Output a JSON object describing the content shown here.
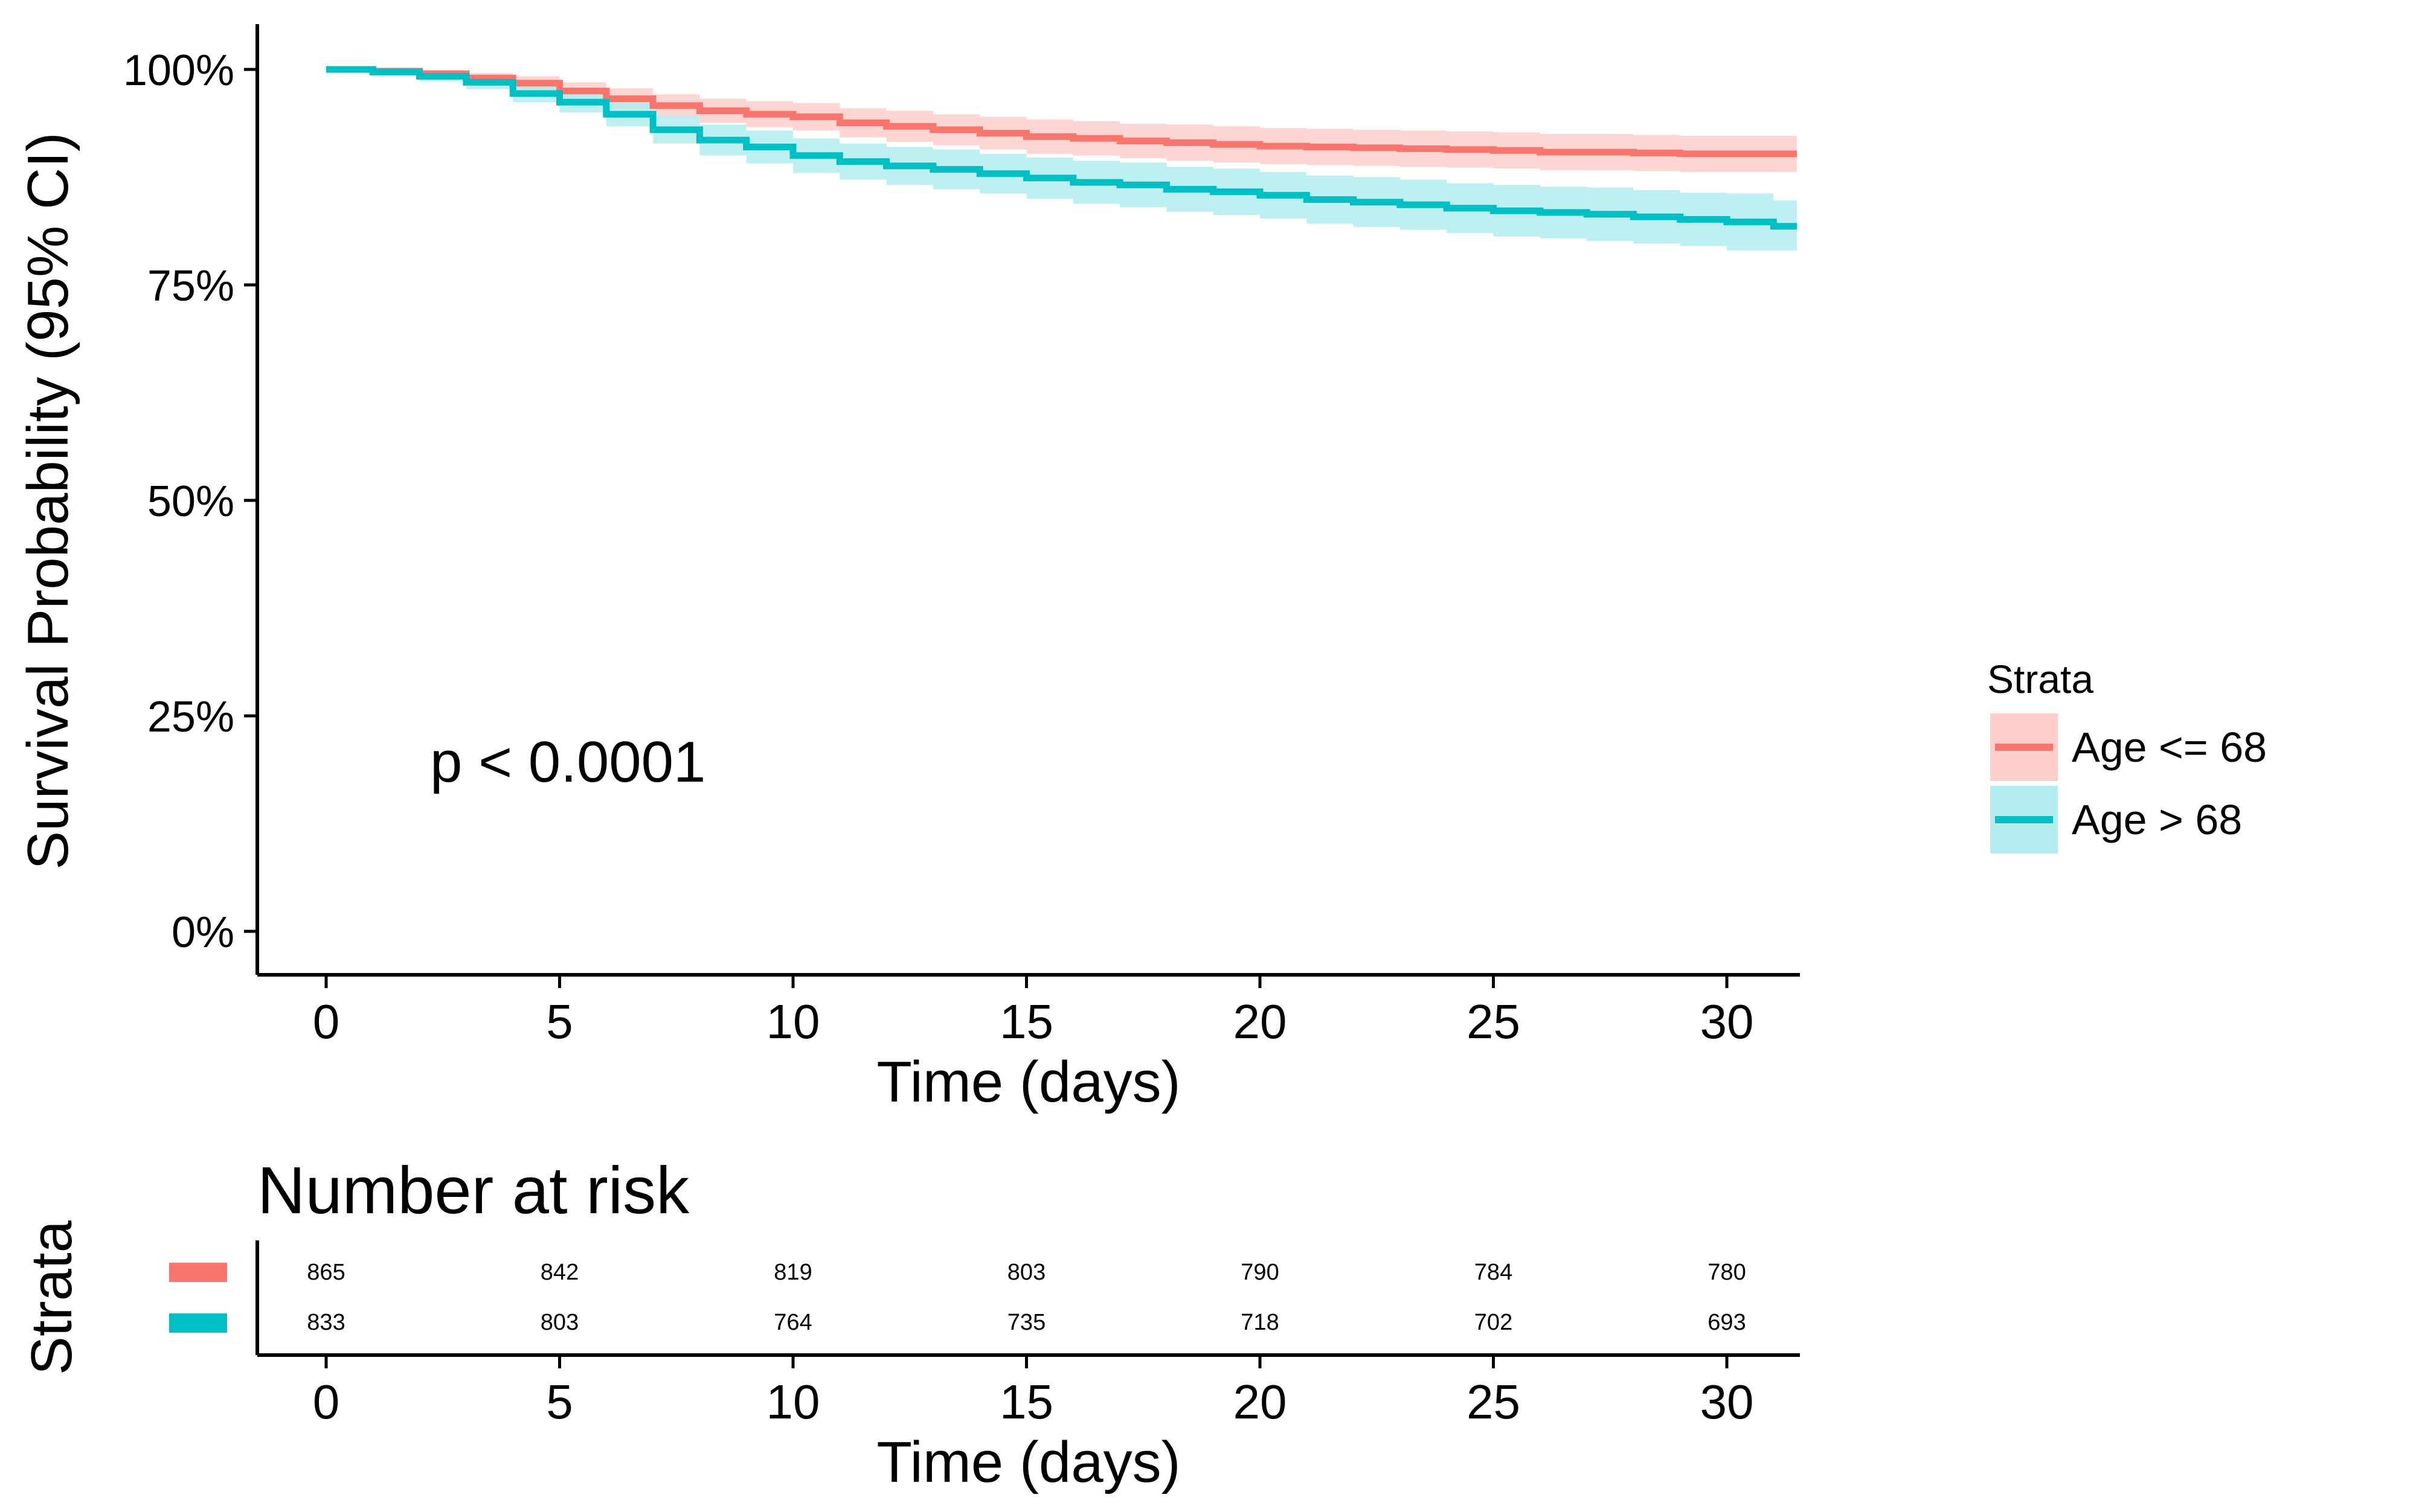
{
  "chart_data": [
    {
      "type": "line",
      "subtype": "kaplan-meier",
      "title": "",
      "xlabel": "Time (days)",
      "ylabel": "Survival Probability (95% CI)",
      "xlim": [
        0,
        31.5
      ],
      "ylim": [
        0,
        1
      ],
      "x_ticks": [
        0,
        5,
        10,
        15,
        20,
        25,
        30
      ],
      "y_ticks": [
        0,
        0.25,
        0.5,
        0.75,
        1.0
      ],
      "y_tick_labels": [
        "0%",
        "25%",
        "50%",
        "75%",
        "100%"
      ],
      "grid": false,
      "legend": {
        "title": "Strata",
        "position": "right"
      },
      "annotation": "p < 0.0001",
      "series": [
        {
          "name": "Age <= 68",
          "color": "#F8766D",
          "ci_color": "#FDCFCB",
          "steps": [
            [
              0,
              1.0
            ],
            [
              1,
              0.998
            ],
            [
              2,
              0.995
            ],
            [
              3,
              0.99
            ],
            [
              4,
              0.984
            ],
            [
              5,
              0.975
            ],
            [
              6,
              0.966
            ],
            [
              7,
              0.958
            ],
            [
              8,
              0.952
            ],
            [
              9,
              0.948
            ],
            [
              10,
              0.945
            ],
            [
              11,
              0.938
            ],
            [
              12,
              0.934
            ],
            [
              13,
              0.93
            ],
            [
              14,
              0.926
            ],
            [
              15,
              0.922
            ],
            [
              16,
              0.92
            ],
            [
              17,
              0.917
            ],
            [
              18,
              0.915
            ],
            [
              19,
              0.913
            ],
            [
              20,
              0.911
            ],
            [
              21,
              0.91
            ],
            [
              22,
              0.909
            ],
            [
              23,
              0.908
            ],
            [
              24,
              0.907
            ],
            [
              25,
              0.906
            ],
            [
              26,
              0.904
            ],
            [
              27,
              0.904
            ],
            [
              28,
              0.903
            ],
            [
              29,
              0.902
            ],
            [
              30,
              0.902
            ],
            [
              31.5,
              0.902
            ]
          ],
          "ci_lower": [
            [
              0,
              1.0
            ],
            [
              1,
              0.996
            ],
            [
              2,
              0.991
            ],
            [
              3,
              0.984
            ],
            [
              4,
              0.976
            ],
            [
              5,
              0.965
            ],
            [
              6,
              0.954
            ],
            [
              7,
              0.945
            ],
            [
              8,
              0.938
            ],
            [
              9,
              0.933
            ],
            [
              10,
              0.929
            ],
            [
              11,
              0.921
            ],
            [
              12,
              0.916
            ],
            [
              13,
              0.912
            ],
            [
              14,
              0.907
            ],
            [
              15,
              0.902
            ],
            [
              16,
              0.9
            ],
            [
              17,
              0.897
            ],
            [
              18,
              0.894
            ],
            [
              19,
              0.892
            ],
            [
              20,
              0.89
            ],
            [
              21,
              0.889
            ],
            [
              22,
              0.888
            ],
            [
              23,
              0.887
            ],
            [
              24,
              0.886
            ],
            [
              25,
              0.885
            ],
            [
              26,
              0.883
            ],
            [
              27,
              0.883
            ],
            [
              28,
              0.882
            ],
            [
              29,
              0.881
            ],
            [
              30,
              0.881
            ],
            [
              31.5,
              0.881
            ]
          ],
          "ci_upper": [
            [
              0,
              1.0
            ],
            [
              1,
              1.0
            ],
            [
              2,
              0.999
            ],
            [
              3,
              0.996
            ],
            [
              4,
              0.992
            ],
            [
              5,
              0.985
            ],
            [
              6,
              0.978
            ],
            [
              7,
              0.971
            ],
            [
              8,
              0.966
            ],
            [
              9,
              0.963
            ],
            [
              10,
              0.961
            ],
            [
              11,
              0.955
            ],
            [
              12,
              0.952
            ],
            [
              13,
              0.948
            ],
            [
              14,
              0.945
            ],
            [
              15,
              0.942
            ],
            [
              16,
              0.94
            ],
            [
              17,
              0.937
            ],
            [
              18,
              0.936
            ],
            [
              19,
              0.934
            ],
            [
              20,
              0.932
            ],
            [
              21,
              0.931
            ],
            [
              22,
              0.93
            ],
            [
              23,
              0.929
            ],
            [
              24,
              0.928
            ],
            [
              25,
              0.927
            ],
            [
              26,
              0.925
            ],
            [
              27,
              0.925
            ],
            [
              28,
              0.924
            ],
            [
              29,
              0.923
            ],
            [
              30,
              0.923
            ],
            [
              31.5,
              0.923
            ]
          ]
        },
        {
          "name": "Age > 68",
          "color": "#00BFC4",
          "ci_color": "#B3ECEE",
          "steps": [
            [
              0,
              1.0
            ],
            [
              1,
              0.997
            ],
            [
              2,
              0.992
            ],
            [
              3,
              0.985
            ],
            [
              4,
              0.972
            ],
            [
              5,
              0.962
            ],
            [
              6,
              0.948
            ],
            [
              7,
              0.93
            ],
            [
              8,
              0.918
            ],
            [
              9,
              0.91
            ],
            [
              10,
              0.9
            ],
            [
              11,
              0.893
            ],
            [
              12,
              0.888
            ],
            [
              13,
              0.884
            ],
            [
              14,
              0.879
            ],
            [
              15,
              0.874
            ],
            [
              16,
              0.869
            ],
            [
              17,
              0.866
            ],
            [
              18,
              0.861
            ],
            [
              19,
              0.858
            ],
            [
              20,
              0.854
            ],
            [
              21,
              0.849
            ],
            [
              22,
              0.846
            ],
            [
              23,
              0.843
            ],
            [
              24,
              0.839
            ],
            [
              25,
              0.836
            ],
            [
              26,
              0.834
            ],
            [
              27,
              0.832
            ],
            [
              28,
              0.829
            ],
            [
              29,
              0.826
            ],
            [
              30,
              0.823
            ],
            [
              31,
              0.818
            ],
            [
              31.5,
              0.818
            ]
          ],
          "ci_lower": [
            [
              0,
              1.0
            ],
            [
              1,
              0.993
            ],
            [
              2,
              0.986
            ],
            [
              3,
              0.977
            ],
            [
              4,
              0.962
            ],
            [
              5,
              0.95
            ],
            [
              6,
              0.934
            ],
            [
              7,
              0.914
            ],
            [
              8,
              0.9
            ],
            [
              9,
              0.891
            ],
            [
              10,
              0.88
            ],
            [
              11,
              0.872
            ],
            [
              12,
              0.866
            ],
            [
              13,
              0.861
            ],
            [
              14,
              0.856
            ],
            [
              15,
              0.85
            ],
            [
              16,
              0.844
            ],
            [
              17,
              0.84
            ],
            [
              18,
              0.835
            ],
            [
              19,
              0.831
            ],
            [
              20,
              0.827
            ],
            [
              21,
              0.821
            ],
            [
              22,
              0.817
            ],
            [
              23,
              0.814
            ],
            [
              24,
              0.81
            ],
            [
              25,
              0.806
            ],
            [
              26,
              0.804
            ],
            [
              27,
              0.801
            ],
            [
              28,
              0.798
            ],
            [
              29,
              0.795
            ],
            [
              30,
              0.79
            ],
            [
              31,
              0.79
            ],
            [
              31.5,
              0.79
            ]
          ],
          "ci_upper": [
            [
              0,
              1.0
            ],
            [
              1,
              1.0
            ],
            [
              2,
              0.998
            ],
            [
              3,
              0.993
            ],
            [
              4,
              0.982
            ],
            [
              5,
              0.974
            ],
            [
              6,
              0.962
            ],
            [
              7,
              0.946
            ],
            [
              8,
              0.936
            ],
            [
              9,
              0.929
            ],
            [
              10,
              0.92
            ],
            [
              11,
              0.914
            ],
            [
              12,
              0.91
            ],
            [
              13,
              0.907
            ],
            [
              14,
              0.902
            ],
            [
              15,
              0.898
            ],
            [
              16,
              0.894
            ],
            [
              17,
              0.892
            ],
            [
              18,
              0.887
            ],
            [
              19,
              0.885
            ],
            [
              20,
              0.881
            ],
            [
              21,
              0.877
            ],
            [
              22,
              0.875
            ],
            [
              23,
              0.872
            ],
            [
              24,
              0.868
            ],
            [
              25,
              0.866
            ],
            [
              26,
              0.864
            ],
            [
              27,
              0.863
            ],
            [
              28,
              0.86
            ],
            [
              29,
              0.857
            ],
            [
              30,
              0.856
            ],
            [
              31,
              0.848
            ],
            [
              31.5,
              0.848
            ]
          ]
        }
      ]
    },
    {
      "type": "table",
      "title": "Number at risk",
      "ylabel": "Strata",
      "xlabel": "Time (days)",
      "x": [
        0,
        5,
        10,
        15,
        20,
        25,
        30
      ],
      "rows": [
        {
          "name": "Age <= 68",
          "color": "#F8766D",
          "values": [
            865,
            842,
            819,
            803,
            790,
            784,
            780
          ]
        },
        {
          "name": "Age > 68",
          "color": "#00BFC4",
          "values": [
            833,
            803,
            764,
            735,
            718,
            702,
            693
          ]
        }
      ]
    }
  ]
}
